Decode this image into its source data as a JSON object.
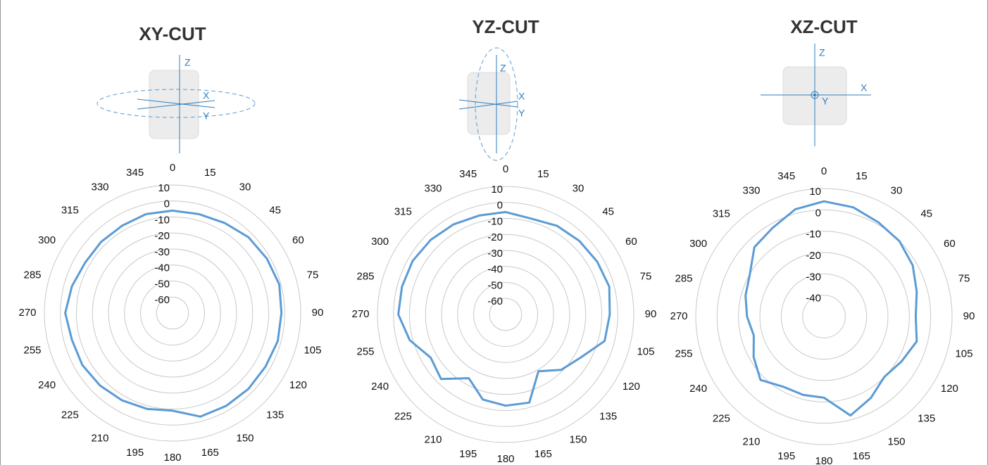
{
  "chart_data": [
    {
      "type": "polar",
      "title": "XY-CUT",
      "annotations": [
        "Z",
        "X",
        "Y"
      ],
      "theta": [
        0,
        15,
        30,
        45,
        60,
        75,
        90,
        105,
        120,
        135,
        150,
        165,
        180,
        195,
        210,
        225,
        240,
        255,
        270,
        285,
        300,
        315,
        330,
        345
      ],
      "values": [
        -6,
        -6,
        -5,
        -3,
        -2,
        -1,
        -2,
        -2,
        -3,
        -3,
        -3,
        -3,
        -9,
        -8,
        -7,
        -6,
        -5,
        -5,
        -3,
        -5,
        -7,
        -7,
        -7,
        -6
      ],
      "color": "#5b9bd5",
      "rlim": [
        -70,
        10
      ],
      "rticks": [
        10,
        0,
        -10,
        -20,
        -30,
        -40,
        -50,
        -60
      ]
    },
    {
      "type": "polar",
      "title": "YZ-CUT",
      "annotations": [
        "Z",
        "X",
        "Y"
      ],
      "theta": [
        0,
        15,
        30,
        45,
        60,
        75,
        90,
        105,
        120,
        135,
        150,
        165,
        180,
        195,
        210,
        225,
        240,
        255,
        270,
        285,
        300,
        315,
        330,
        345
      ],
      "values": [
        -6,
        -8,
        -6,
        -5,
        -4,
        -3,
        -5,
        -6,
        -16,
        -21,
        -29,
        -13,
        -13,
        -15,
        -24,
        -13,
        -16,
        -8,
        -3,
        -3,
        -3,
        -4,
        -5,
        -6
      ],
      "color": "#5b9bd5",
      "rlim": [
        -70,
        10
      ],
      "rticks": [
        10,
        0,
        -10,
        -20,
        -30,
        -40,
        -50,
        -60
      ]
    },
    {
      "type": "polar",
      "title": "XZ-CUT",
      "annotations": [
        "Z",
        "X",
        "Y"
      ],
      "theta": [
        0,
        15,
        30,
        45,
        60,
        75,
        90,
        105,
        120,
        135,
        150,
        165,
        180,
        195,
        210,
        225,
        240,
        255,
        270,
        285,
        300,
        315,
        330,
        345
      ],
      "values": [
        4,
        3,
        1,
        0,
        -2,
        -5,
        -7,
        -5,
        -8,
        -10,
        -6,
        -2,
        -12,
        -12,
        -12,
        -8,
        -12,
        -16,
        -14,
        -12,
        -10,
        -4,
        -2,
        2
      ],
      "color": "#5b9bd5",
      "rlim": [
        -50,
        10
      ],
      "rticks": [
        10,
        0,
        -10,
        -20,
        -30,
        -40
      ]
    }
  ]
}
